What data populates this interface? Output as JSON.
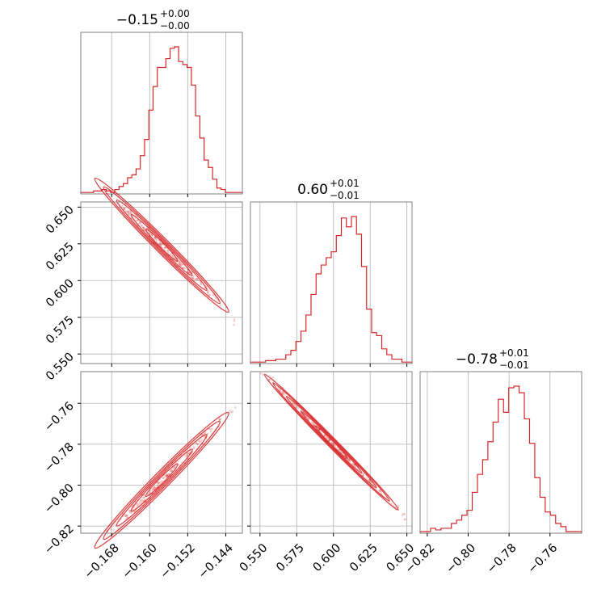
{
  "chart_data": {
    "type": "corner",
    "line_color": "#d62728",
    "grid": true,
    "parameters": [
      {
        "title_value": "−0.15",
        "title_plus": "+0.00",
        "title_minus": "−0.00",
        "range": [
          -0.1745,
          -0.1405
        ],
        "ticks": [
          -0.168,
          -0.16,
          -0.152,
          -0.144
        ],
        "tick_labels": [
          "−0.168",
          "−0.160",
          "−0.152",
          "−0.144"
        ]
      },
      {
        "title_value": "0.60",
        "title_plus": "+0.01",
        "title_minus": "−0.01",
        "range": [
          0.5435,
          0.6535
        ],
        "ticks": [
          0.55,
          0.575,
          0.6,
          0.625,
          0.65
        ],
        "tick_labels": [
          "0.550",
          "0.575",
          "0.600",
          "0.625",
          "0.650"
        ]
      },
      {
        "title_value": "−0.78",
        "title_plus": "+0.01",
        "title_minus": "−0.01",
        "range": [
          -0.8235,
          -0.7445
        ],
        "ticks": [
          -0.82,
          -0.8,
          -0.78,
          -0.76
        ],
        "tick_labels": [
          "−0.82",
          "−0.80",
          "−0.78",
          "−0.76"
        ]
      }
    ],
    "histograms": [
      {
        "param": 0,
        "counts": [
          1,
          1,
          1,
          2,
          2,
          3,
          2,
          1,
          3,
          5,
          7,
          11,
          13,
          17,
          26,
          37,
          57,
          73,
          86,
          86,
          92,
          99,
          100,
          90,
          88,
          86,
          74,
          53,
          38,
          23,
          18,
          10,
          4,
          3,
          1,
          1,
          1,
          1
        ]
      },
      {
        "param": 1,
        "counts": [
          1,
          1,
          1,
          2,
          2,
          3,
          3,
          6,
          9,
          15,
          22,
          33,
          47,
          61,
          67,
          72,
          76,
          87,
          99,
          93,
          100,
          88,
          66,
          37,
          21,
          19,
          10,
          6,
          3,
          3,
          1,
          1
        ]
      },
      {
        "param": 2,
        "counts": [
          1,
          1,
          3,
          2,
          3,
          3,
          6,
          8,
          11,
          14,
          25,
          36,
          45,
          56,
          68,
          82,
          74,
          89,
          90,
          86,
          70,
          55,
          34,
          22,
          13,
          11,
          6,
          4,
          1,
          1,
          1
        ]
      }
    ],
    "joint": [
      {
        "x_param": 0,
        "y_param": 1,
        "slope": -3.235,
        "intercept": 0.1147,
        "half_width": 0.0026
      },
      {
        "x_param": 0,
        "y_param": 2,
        "slope": 2.3529,
        "intercept": -0.4271,
        "half_width": 0.0022
      },
      {
        "x_param": 1,
        "y_param": 2,
        "slope": -0.7273,
        "intercept": -0.3436,
        "half_width": 0.0011
      }
    ]
  }
}
